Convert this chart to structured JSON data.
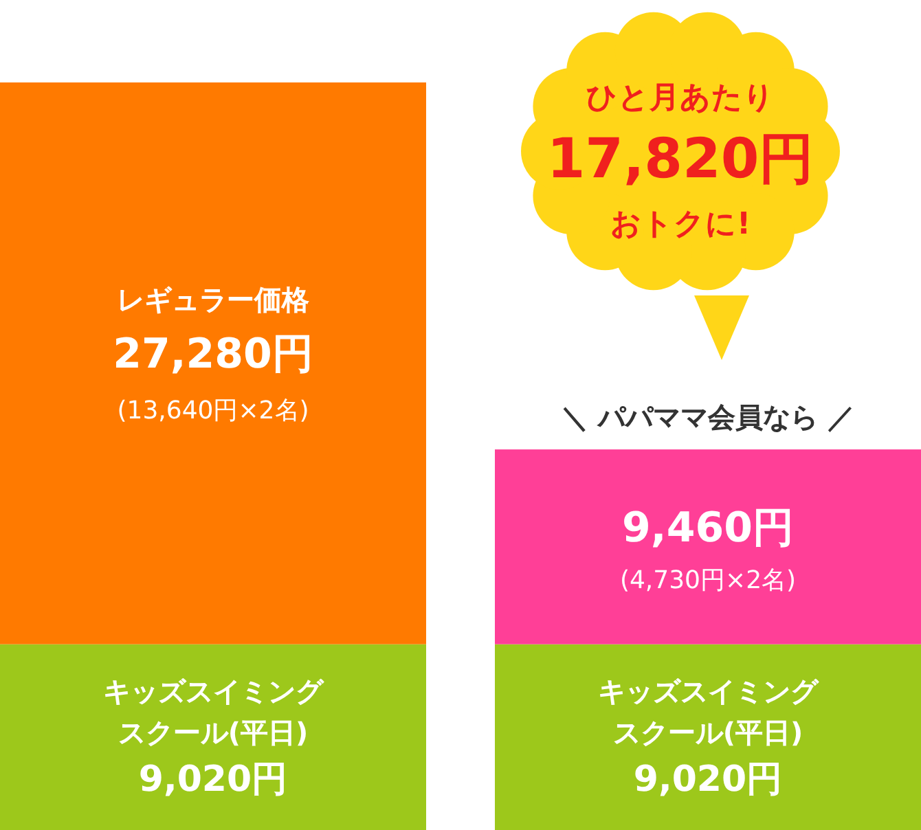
{
  "chart_data": {
    "type": "bar",
    "stacked": true,
    "categories": [
      null,
      null
    ],
    "series": [
      {
        "name": "キッズスイミングスクール(平日)",
        "colors": [
          "#9dc81b",
          "#9dc81b"
        ],
        "values": [
          9020,
          9020
        ],
        "value_labels": [
          "9,020円",
          "9,020円"
        ]
      },
      {
        "colors": [
          "#ff7a00",
          "#ff3f97"
        ],
        "values": [
          27280,
          9460
        ],
        "value_labels": [
          "27,280円",
          "9,460円"
        ]
      }
    ],
    "annotations": [
      "レギュラー価格",
      "(13,640円×2名)",
      "(4,730円×2名)",
      "＼ パパママ会員なら ／",
      "ひと月あたり",
      "17,820円",
      "おトクに!"
    ]
  }
}
